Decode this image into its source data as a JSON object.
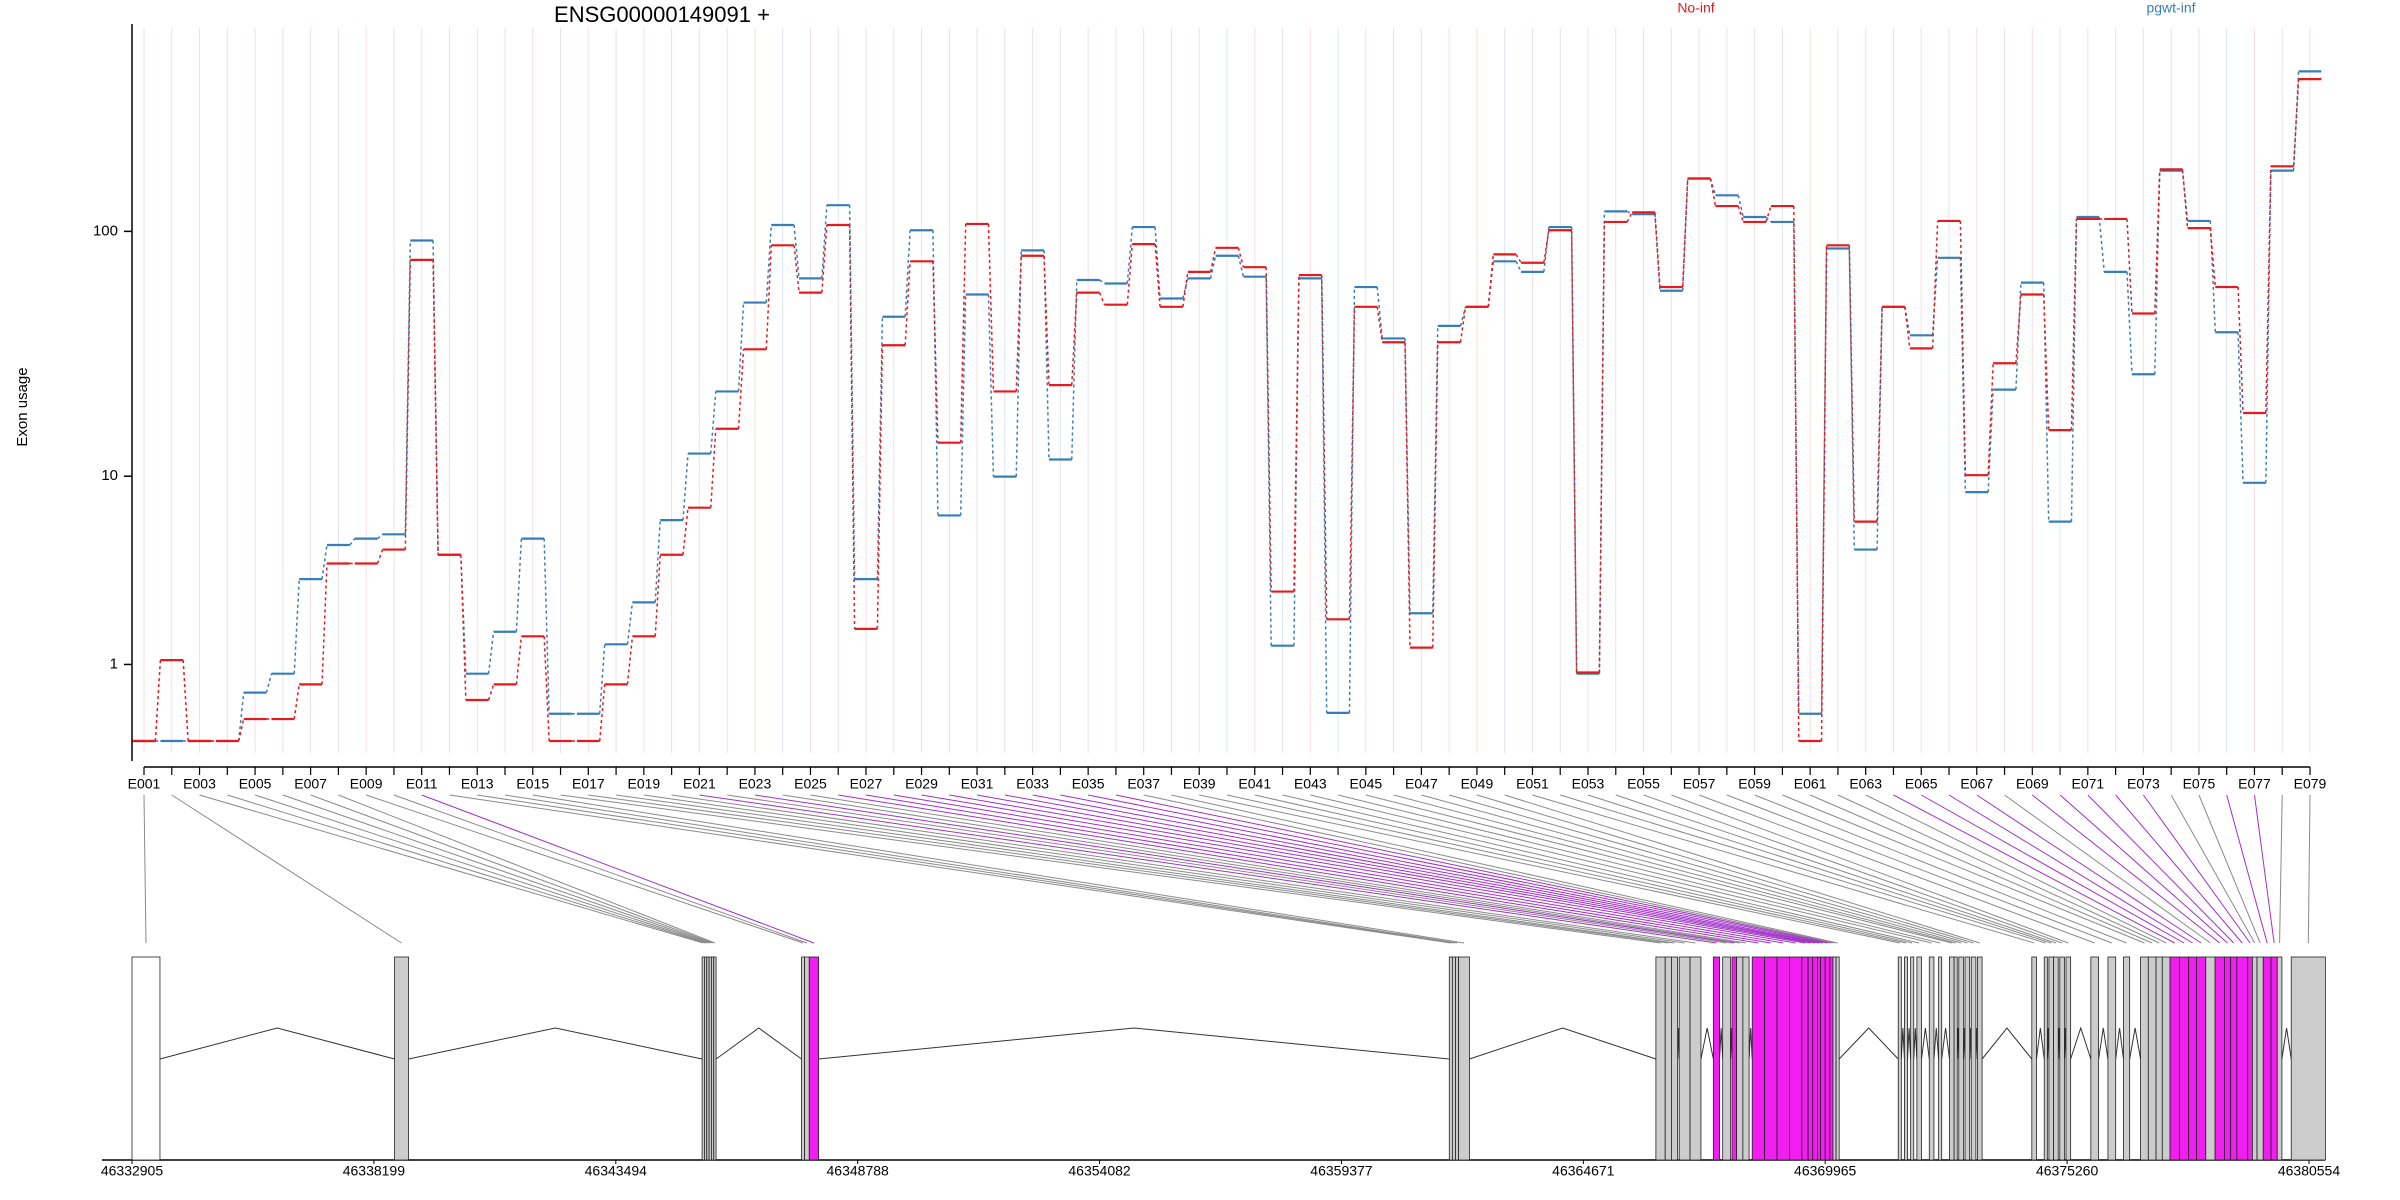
{
  "chart_data": {
    "type": "line",
    "title": "ENSG00000149091 +",
    "y_label": "Exon usage",
    "yscale": "log1p",
    "ylim": [
      0,
      550
    ],
    "yticks": [
      1,
      10,
      100
    ],
    "legend_position": "top",
    "categories": [
      "E001",
      null,
      "E003",
      null,
      "E005",
      null,
      "E007",
      null,
      "E009",
      null,
      "E011",
      null,
      "E013",
      null,
      "E015",
      null,
      "E017",
      null,
      "E019",
      null,
      "E021",
      null,
      "E023",
      null,
      "E025",
      null,
      "E027",
      null,
      "E029",
      null,
      "E031",
      null,
      "E033",
      null,
      "E035",
      null,
      "E037",
      null,
      "E039",
      null,
      "E041",
      null,
      "E043",
      null,
      "E045",
      null,
      "E047",
      null,
      "E049",
      null,
      "E051",
      null,
      "E053",
      null,
      "E055",
      null,
      "E057",
      null,
      "E059",
      null,
      "E061",
      null,
      "E063",
      null,
      "E065",
      null,
      "E067",
      null,
      "E069",
      null,
      "E071",
      null,
      "E073",
      null,
      "E075",
      null,
      "E077",
      null,
      "E079"
    ],
    "series": [
      {
        "name": "No-inf",
        "color": "#e41a1c",
        "values": [
          0,
          1.08,
          0,
          0,
          0.22,
          0.22,
          0.67,
          3.99,
          3.99,
          4.66,
          77,
          4.4,
          0.45,
          0.67,
          1.58,
          0,
          0,
          0.67,
          1.58,
          4.4,
          7.27,
          15.9,
          33.7,
          88,
          57,
          106,
          1.76,
          35,
          76,
          13.9,
          107,
          22.7,
          80,
          24.1,
          57,
          51,
          89,
          50,
          69,
          86,
          72,
          2.87,
          67,
          2.01,
          50,
          36,
          1.33,
          36,
          50,
          81,
          75,
          101,
          0.86,
          109,
          119,
          60,
          162,
          126,
          109,
          126,
          0,
          88,
          6.29,
          50,
          34,
          110,
          10.1,
          29.6,
          56,
          15.7,
          112,
          112,
          47,
          176,
          103,
          60,
          18.5,
          181,
          400
        ]
      },
      {
        "name": "pgwt-inf",
        "color": "#377eb8",
        "values": [
          0,
          0,
          0,
          0,
          0.55,
          0.84,
          3.33,
          4.9,
          5.25,
          5.5,
          92,
          4.4,
          0.84,
          1.69,
          5.25,
          0.28,
          0.28,
          1.4,
          2.51,
          6.39,
          12.5,
          22.7,
          52,
          106,
          65,
          127,
          3.33,
          45.6,
          101,
          6.71,
          56,
          9.96,
          84,
          11.8,
          64,
          62,
          104,
          54,
          65,
          80,
          66,
          1.37,
          65,
          0.29,
          60,
          37.3,
          2.18,
          41.9,
          50,
          76,
          69,
          104,
          0.84,
          120,
          117,
          58,
          162,
          139,
          114,
          109,
          0.28,
          85.5,
          4.66,
          50,
          38.4,
          78.5,
          8.52,
          23.1,
          62.5,
          6.29,
          114,
          69,
          26.7,
          174,
          110,
          39.5,
          9.36,
          174,
          429
        ]
      }
    ],
    "gene_model": {
      "xlim": [
        46332905,
        46380554
      ],
      "xticks": [
        46332905,
        46338199,
        46343494,
        46348788,
        46354082,
        46359377,
        46364671,
        46369965,
        46375260,
        46380554
      ],
      "exon_starts": [
        46332905,
        46338651,
        46345383,
        46345434,
        46345485,
        46345536,
        46345587,
        46345638,
        46347559,
        46347627,
        46347729,
        46361737,
        46361805,
        46361873,
        46361941,
        46366259,
        46366463,
        46366599,
        46366769,
        46367007,
        46367517,
        46367721,
        46367925,
        46368027,
        46368163,
        46368367,
        46368639,
        46368911,
        46369183,
        46369455,
        46369591,
        46369693,
        46369795,
        46369863,
        46369965,
        46370067,
        46370135,
        46370203,
        46371563,
        46371699,
        46371835,
        46371971,
        46372243,
        46372447,
        46372685,
        46372787,
        46372889,
        46373025,
        46373161,
        46373297,
        46374487,
        46374759,
        46374861,
        46374963,
        46375099,
        46375235,
        46375779,
        46376153,
        46376493,
        46376867,
        46377037,
        46377207,
        46377343,
        46377513,
        46377717,
        46377921,
        46378091,
        46378295,
        46378499,
        46378703,
        46378839,
        46378975,
        46379213,
        46379315,
        46379417,
        46379553,
        46379723,
        46379859,
        46380165
      ],
      "exon_ends": [
        46333517,
        46338957,
        46345434,
        46345485,
        46345536,
        46345587,
        46345638,
        46345689,
        46347627,
        46347729,
        46347933,
        46361805,
        46361873,
        46361941,
        46362179,
        46366463,
        46366599,
        46366735,
        46367007,
        46367245,
        46367653,
        46367891,
        46368027,
        46368163,
        46368299,
        46368639,
        46368911,
        46369183,
        46369455,
        46369591,
        46369693,
        46369795,
        46369863,
        46369965,
        46370067,
        46370135,
        46370203,
        46370271,
        46371631,
        46371767,
        46371903,
        46372073,
        46372345,
        46372515,
        46372787,
        46372855,
        46372991,
        46373127,
        46373263,
        46373399,
        46374589,
        46374827,
        46374963,
        46375065,
        46375201,
        46375337,
        46375949,
        46376323,
        46376629,
        46377037,
        46377207,
        46377343,
        46377513,
        46377717,
        46377921,
        46378091,
        46378295,
        46378499,
        46378703,
        46378839,
        46378975,
        46379213,
        46379315,
        46379417,
        46379553,
        46379723,
        46379859,
        46379961,
        46380913
      ],
      "exon_colors": [
        "#ffffff",
        "#cccccc",
        "#cccccc",
        "#cccccc",
        "#cccccc",
        "#cccccc",
        "#cccccc",
        "#cccccc",
        "#cccccc",
        "#cccccc",
        "#f01ff0",
        "#cccccc",
        "#cccccc",
        "#cccccc",
        "#cccccc",
        "#cccccc",
        "#cccccc",
        "#cccccc",
        "#cccccc",
        "#cccccc",
        "#f01ff0",
        "#cccccc",
        "#f01ff0",
        "#cccccc",
        "#cccccc",
        "#f01ff0",
        "#f01ff0",
        "#f01ff0",
        "#f01ff0",
        "#f01ff0",
        "#f01ff0",
        "#f01ff0",
        "#f01ff0",
        "#f01ff0",
        "#f01ff0",
        "#f01ff0",
        "#cccccc",
        "#cccccc",
        "#cccccc",
        "#cccccc",
        "#cccccc",
        "#cccccc",
        "#cccccc",
        "#cccccc",
        "#cccccc",
        "#cccccc",
        "#cccccc",
        "#cccccc",
        "#cccccc",
        "#cccccc",
        "#cccccc",
        "#cccccc",
        "#cccccc",
        "#cccccc",
        "#cccccc",
        "#cccccc",
        "#cccccc",
        "#cccccc",
        "#cccccc",
        "#cccccc",
        "#cccccc",
        "#cccccc",
        "#cccccc",
        "#f01ff0",
        "#f01ff0",
        "#f01ff0",
        "#f01ff0",
        "#cccccc",
        "#f01ff0",
        "#f01ff0",
        "#f01ff0",
        "#f01ff0",
        "#f01ff0",
        "#cccccc",
        "#cccccc",
        "#f01ff0",
        "#f01ff0",
        "#cccccc",
        "#cccccc"
      ]
    }
  }
}
